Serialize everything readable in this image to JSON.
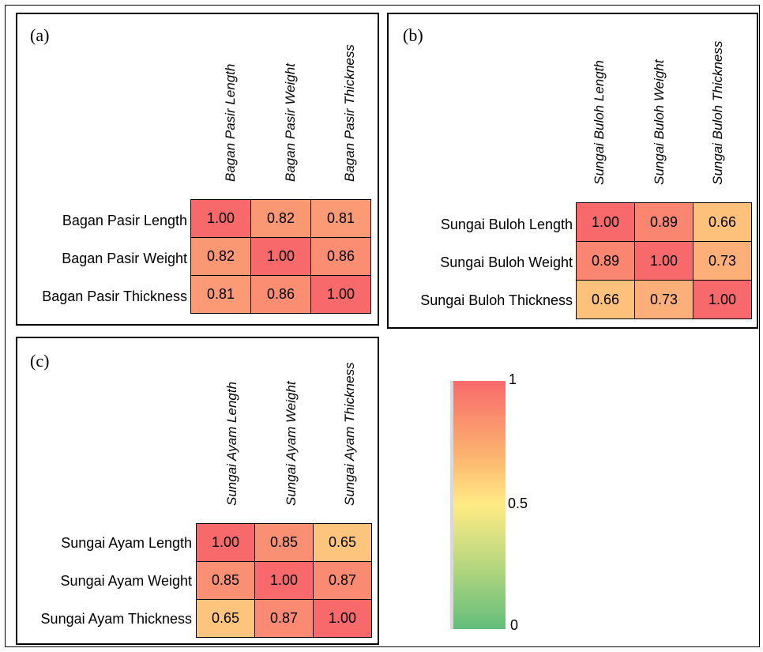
{
  "colors": {
    "high": "#f8696b",
    "mid": "#ffeb84",
    "low": "#63be7b"
  },
  "colorbar": {
    "max_label": "1",
    "mid_label": "0.5",
    "min_label": "0"
  },
  "chart_data": [
    {
      "type": "heatmap",
      "panel": "(a)",
      "columns": [
        "Bagan Pasir Length",
        "Bagan Pasir Weight",
        "Bagan Pasir Thickness"
      ],
      "rows": [
        "Bagan Pasir Length",
        "Bagan Pasir Weight",
        "Bagan Pasir Thickness"
      ],
      "values": [
        [
          "1.00",
          "0.82",
          "0.81"
        ],
        [
          "0.82",
          "1.00",
          "0.86"
        ],
        [
          "0.81",
          "0.86",
          "1.00"
        ]
      ],
      "scale": [
        0,
        1
      ]
    },
    {
      "type": "heatmap",
      "panel": "(b)",
      "columns": [
        "Sungai Buloh Length",
        "Sungai Buloh Weight",
        "Sungai Buloh Thickness"
      ],
      "rows": [
        "Sungai Buloh Length",
        "Sungai Buloh Weight",
        "Sungai Buloh Thickness"
      ],
      "values": [
        [
          "1.00",
          "0.89",
          "0.66"
        ],
        [
          "0.89",
          "1.00",
          "0.73"
        ],
        [
          "0.66",
          "0.73",
          "1.00"
        ]
      ],
      "scale": [
        0,
        1
      ]
    },
    {
      "type": "heatmap",
      "panel": "(c)",
      "columns": [
        "Sungai Ayam Length",
        "Sungai Ayam Weight",
        "Sungai Ayam Thickness"
      ],
      "rows": [
        "Sungai Ayam Length",
        "Sungai Ayam Weight",
        "Sungai Ayam Thickness"
      ],
      "values": [
        [
          "1.00",
          "0.85",
          "0.65"
        ],
        [
          "0.85",
          "1.00",
          "0.87"
        ],
        [
          "0.65",
          "0.87",
          "1.00"
        ]
      ],
      "scale": [
        0,
        1
      ]
    }
  ]
}
